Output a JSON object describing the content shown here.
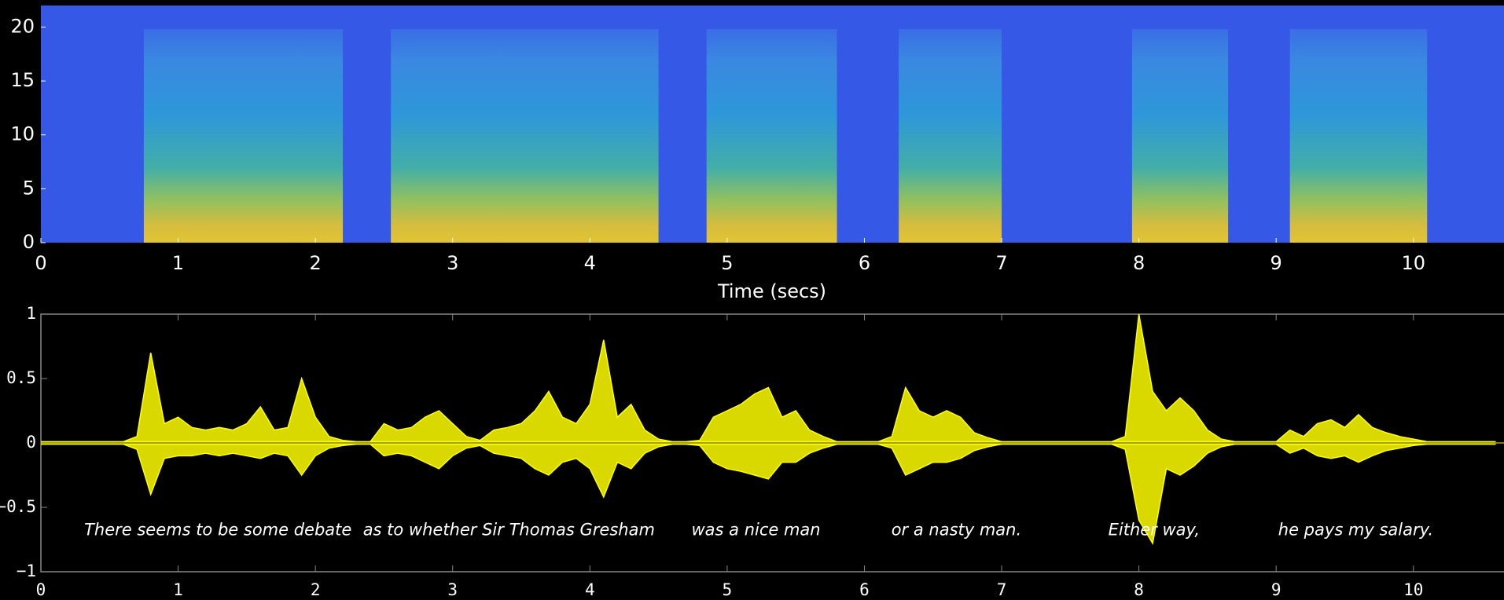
{
  "chart_data": [
    {
      "type": "spectrogram",
      "xlabel": "Time (secs)",
      "xlim": [
        0,
        10.66
      ],
      "ylim": [
        0,
        22
      ],
      "xticks": [
        0,
        1,
        2,
        3,
        4,
        5,
        6,
        7,
        8,
        9,
        10
      ],
      "yticks": [
        0,
        5,
        10,
        15,
        20
      ],
      "background_color": "#3558e6",
      "segments": [
        [
          0.75,
          2.2
        ],
        [
          2.55,
          4.5
        ],
        [
          4.85,
          5.8
        ],
        [
          6.25,
          7.0
        ],
        [
          7.95,
          8.65
        ],
        [
          9.1,
          10.1
        ]
      ]
    },
    {
      "type": "waveform",
      "xlim": [
        0,
        10.66
      ],
      "ylim": [
        -1,
        1
      ],
      "xticks": [
        0,
        1,
        2,
        3,
        4,
        5,
        6,
        7,
        8,
        9,
        10
      ],
      "yticks": [
        {
          "value": -1,
          "label": "−1"
        },
        {
          "value": -0.5,
          "label": "−0.5"
        },
        0,
        0.5,
        1
      ],
      "x": [
        0,
        0.1,
        0.2,
        0.3,
        0.4,
        0.5,
        0.6,
        0.7,
        0.8,
        0.9,
        1,
        1.1,
        1.2,
        1.3,
        1.4,
        1.5,
        1.6,
        1.7,
        1.8,
        1.9,
        2,
        2.1,
        2.2,
        2.3,
        2.4,
        2.5,
        2.6,
        2.7,
        2.8,
        2.9,
        3,
        3.1,
        3.2,
        3.3,
        3.4,
        3.5,
        3.6,
        3.7,
        3.8,
        3.9,
        4,
        4.1,
        4.2,
        4.3,
        4.4,
        4.5,
        4.6,
        4.7,
        4.8,
        4.9,
        5,
        5.1,
        5.2,
        5.3,
        5.4,
        5.5,
        5.6,
        5.7,
        5.8,
        5.9,
        6,
        6.1,
        6.2,
        6.3,
        6.4,
        6.5,
        6.6,
        6.7,
        6.8,
        6.9,
        7,
        7.1,
        7.2,
        7.3,
        7.4,
        7.5,
        7.6,
        7.7,
        7.8,
        7.9,
        8,
        8.1,
        8.2,
        8.3,
        8.4,
        8.5,
        8.6,
        8.7,
        8.8,
        8.9,
        9,
        9.1,
        9.2,
        9.3,
        9.4,
        9.5,
        9.6,
        9.7,
        9.8,
        9.9,
        10,
        10.1,
        10.2,
        10.3,
        10.4,
        10.5,
        10.6
      ],
      "series": [
        {
          "color": "#ffff00",
          "values": [
            0.01,
            0.01,
            0.01,
            0.01,
            0.01,
            0.01,
            0.01,
            0.05,
            0.7,
            0.15,
            0.2,
            0.12,
            0.1,
            0.12,
            0.1,
            0.15,
            0.28,
            0.1,
            0.12,
            0.5,
            0.2,
            0.05,
            0.02,
            0.01,
            0.01,
            0.15,
            0.1,
            0.12,
            0.2,
            0.25,
            0.15,
            0.05,
            0.02,
            0.1,
            0.12,
            0.15,
            0.25,
            0.4,
            0.2,
            0.15,
            0.3,
            0.8,
            0.2,
            0.3,
            0.1,
            0.03,
            0.01,
            0.01,
            0.02,
            0.2,
            0.25,
            0.3,
            0.38,
            0.43,
            0.2,
            0.25,
            0.1,
            0.05,
            0.01,
            0.01,
            0.01,
            0.01,
            0.05,
            0.43,
            0.25,
            0.2,
            0.25,
            0.2,
            0.08,
            0.04,
            0.01,
            0.01,
            0.01,
            0.01,
            0.01,
            0.01,
            0.01,
            0.01,
            0.01,
            0.05,
            1.0,
            0.4,
            0.25,
            0.35,
            0.25,
            0.1,
            0.03,
            0.01,
            0.01,
            0.01,
            0.01,
            0.1,
            0.05,
            0.15,
            0.18,
            0.12,
            0.22,
            0.12,
            0.08,
            0.05,
            0.03,
            0.01,
            0.01,
            0.01,
            0.01,
            0.01,
            0.01
          ]
        },
        {
          "color": "#ffff00",
          "values": [
            -0.01,
            -0.01,
            -0.01,
            -0.01,
            -0.01,
            -0.01,
            -0.01,
            -0.05,
            -0.4,
            -0.12,
            -0.1,
            -0.1,
            -0.08,
            -0.1,
            -0.08,
            -0.1,
            -0.12,
            -0.08,
            -0.1,
            -0.25,
            -0.1,
            -0.04,
            -0.02,
            -0.01,
            -0.01,
            -0.1,
            -0.08,
            -0.1,
            -0.15,
            -0.2,
            -0.1,
            -0.04,
            -0.02,
            -0.08,
            -0.1,
            -0.12,
            -0.2,
            -0.25,
            -0.15,
            -0.12,
            -0.2,
            -0.42,
            -0.15,
            -0.2,
            -0.08,
            -0.03,
            -0.01,
            -0.01,
            -0.02,
            -0.15,
            -0.2,
            -0.22,
            -0.25,
            -0.28,
            -0.15,
            -0.15,
            -0.08,
            -0.04,
            -0.01,
            -0.01,
            -0.01,
            -0.01,
            -0.04,
            -0.25,
            -0.2,
            -0.15,
            -0.15,
            -0.12,
            -0.06,
            -0.03,
            -0.01,
            -0.01,
            -0.01,
            -0.01,
            -0.01,
            -0.01,
            -0.01,
            -0.01,
            -0.01,
            -0.05,
            -0.6,
            -0.78,
            -0.2,
            -0.25,
            -0.18,
            -0.08,
            -0.03,
            -0.01,
            -0.01,
            -0.01,
            -0.01,
            -0.08,
            -0.04,
            -0.1,
            -0.12,
            -0.1,
            -0.15,
            -0.1,
            -0.06,
            -0.04,
            -0.02,
            -0.01,
            -0.01,
            -0.01,
            -0.01,
            -0.01,
            -0.01
          ]
        }
      ],
      "annotations": [
        {
          "text": "There seems to be some debate",
          "x": 1.29,
          "y": -0.68
        },
        {
          "text": "as  to whether Sir Thomas Gresham",
          "x": 3.41,
          "y": -0.68
        },
        {
          "text": "was a nice man",
          "x": 5.21,
          "y": -0.68
        },
        {
          "text": "or a nasty man.",
          "x": 6.67,
          "y": -0.68
        },
        {
          "text": "Either way,",
          "x": 8.11,
          "y": -0.68
        },
        {
          "text": "he pays my salary.",
          "x": 9.58,
          "y": -0.68
        }
      ]
    }
  ]
}
